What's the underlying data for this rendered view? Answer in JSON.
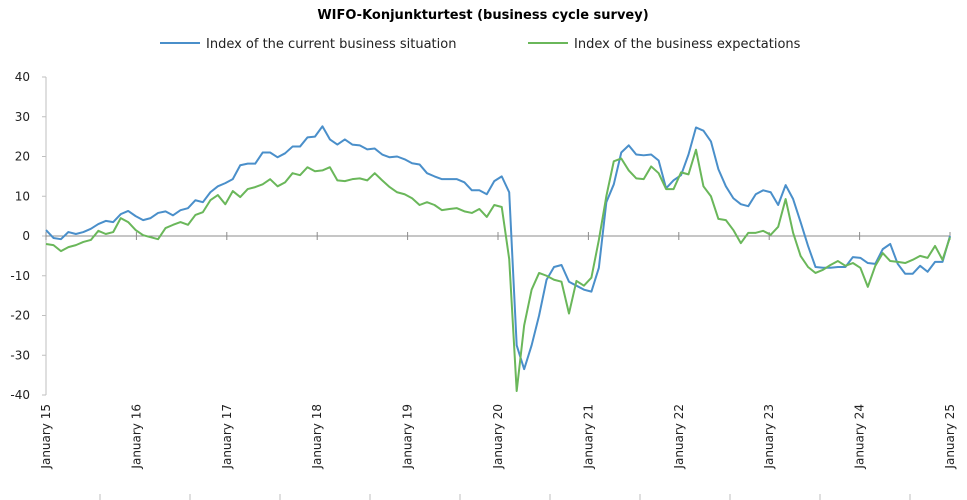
{
  "chart_data": {
    "type": "line",
    "title": "WIFO-Konjunkturtest (business cycle survey)",
    "xlabel": "",
    "ylabel": "",
    "ylim": [
      -40,
      40
    ],
    "yticks": [
      40,
      30,
      20,
      10,
      0,
      -10,
      -20,
      -30,
      -40
    ],
    "x_tick_labels": [
      "January 15",
      "January 16",
      "January 17",
      "January 18",
      "January 19",
      "January 20",
      "January 21",
      "January 22",
      "January 23",
      "January 24",
      "January 25"
    ],
    "legend_position": "top",
    "grid": false,
    "series": [
      {
        "name": "Index of the current business situation",
        "color": "#4a8fca",
        "values": [
          1.5,
          -0.5,
          -0.8,
          1.0,
          0.5,
          1.0,
          1.8,
          3.0,
          3.8,
          3.5,
          5.5,
          6.3,
          5.0,
          4.0,
          4.5,
          5.8,
          6.2,
          5.2,
          6.5,
          7.0,
          9.0,
          8.5,
          11.0,
          12.5,
          13.3,
          14.3,
          17.8,
          18.2,
          18.2,
          21.0,
          21.0,
          19.8,
          20.8,
          22.5,
          22.5,
          24.8,
          25.0,
          27.6,
          24.3,
          23.0,
          24.3,
          23.0,
          22.8,
          21.8,
          22.0,
          20.5,
          19.8,
          20.0,
          19.3,
          18.3,
          18.0,
          15.8,
          15.0,
          14.3,
          14.3,
          14.3,
          13.5,
          11.5,
          11.5,
          10.5,
          13.8,
          15.0,
          11.0,
          -27.5,
          -33.5,
          -27.5,
          -20.0,
          -11.0,
          -7.8,
          -7.3,
          -11.5,
          -12.5,
          -13.5,
          -14.0,
          -8.0,
          8.5,
          13.0,
          21.0,
          22.8,
          20.5,
          20.3,
          20.5,
          19.0,
          12.0,
          14.0,
          15.3,
          20.5,
          27.3,
          26.5,
          23.8,
          16.8,
          12.5,
          9.5,
          8.0,
          7.5,
          10.5,
          11.5,
          11.0,
          7.8,
          12.8,
          9.3,
          3.5,
          -2.5,
          -7.8,
          -8.0,
          -8.0,
          -7.8,
          -7.8,
          -5.3,
          -5.5,
          -6.8,
          -7.0,
          -3.3,
          -2.0,
          -7.0,
          -9.5,
          -9.5,
          -7.5,
          -9.0,
          -6.5,
          -6.5,
          0.0
        ]
      },
      {
        "name": "Index of the business expectations",
        "color": "#6ab75a",
        "values": [
          -2.0,
          -2.3,
          -3.8,
          -2.8,
          -2.3,
          -1.5,
          -1.0,
          1.3,
          0.5,
          1.0,
          4.5,
          3.5,
          1.5,
          0.2,
          -0.3,
          -0.8,
          2.0,
          2.8,
          3.5,
          2.8,
          5.3,
          6.0,
          9.0,
          10.3,
          8.0,
          11.3,
          9.8,
          11.8,
          12.3,
          13.0,
          14.3,
          12.5,
          13.5,
          15.8,
          15.3,
          17.3,
          16.3,
          16.5,
          17.3,
          14.0,
          13.8,
          14.3,
          14.5,
          14.0,
          15.8,
          14.0,
          12.3,
          11.0,
          10.5,
          9.5,
          7.8,
          8.5,
          7.8,
          6.5,
          6.8,
          7.0,
          6.2,
          5.8,
          6.8,
          4.8,
          7.8,
          7.3,
          -5.8,
          -39.0,
          -22.5,
          -13.5,
          -9.3,
          -10.0,
          -11.0,
          -11.5,
          -19.5,
          -11.3,
          -12.5,
          -10.5,
          -1.0,
          10.0,
          18.8,
          19.5,
          16.5,
          14.5,
          14.3,
          17.5,
          15.8,
          11.8,
          11.8,
          16.0,
          15.5,
          21.7,
          12.5,
          10.0,
          4.3,
          4.0,
          1.5,
          -1.8,
          0.8,
          0.8,
          1.3,
          0.3,
          2.3,
          9.3,
          0.8,
          -5.0,
          -7.8,
          -9.3,
          -8.5,
          -7.3,
          -6.3,
          -7.5,
          -6.8,
          -8.0,
          -12.8,
          -7.5,
          -4.3,
          -6.3,
          -6.5,
          -6.8,
          -6.0,
          -5.0,
          -5.5,
          -2.5,
          -6.0,
          -0.3
        ]
      }
    ]
  }
}
